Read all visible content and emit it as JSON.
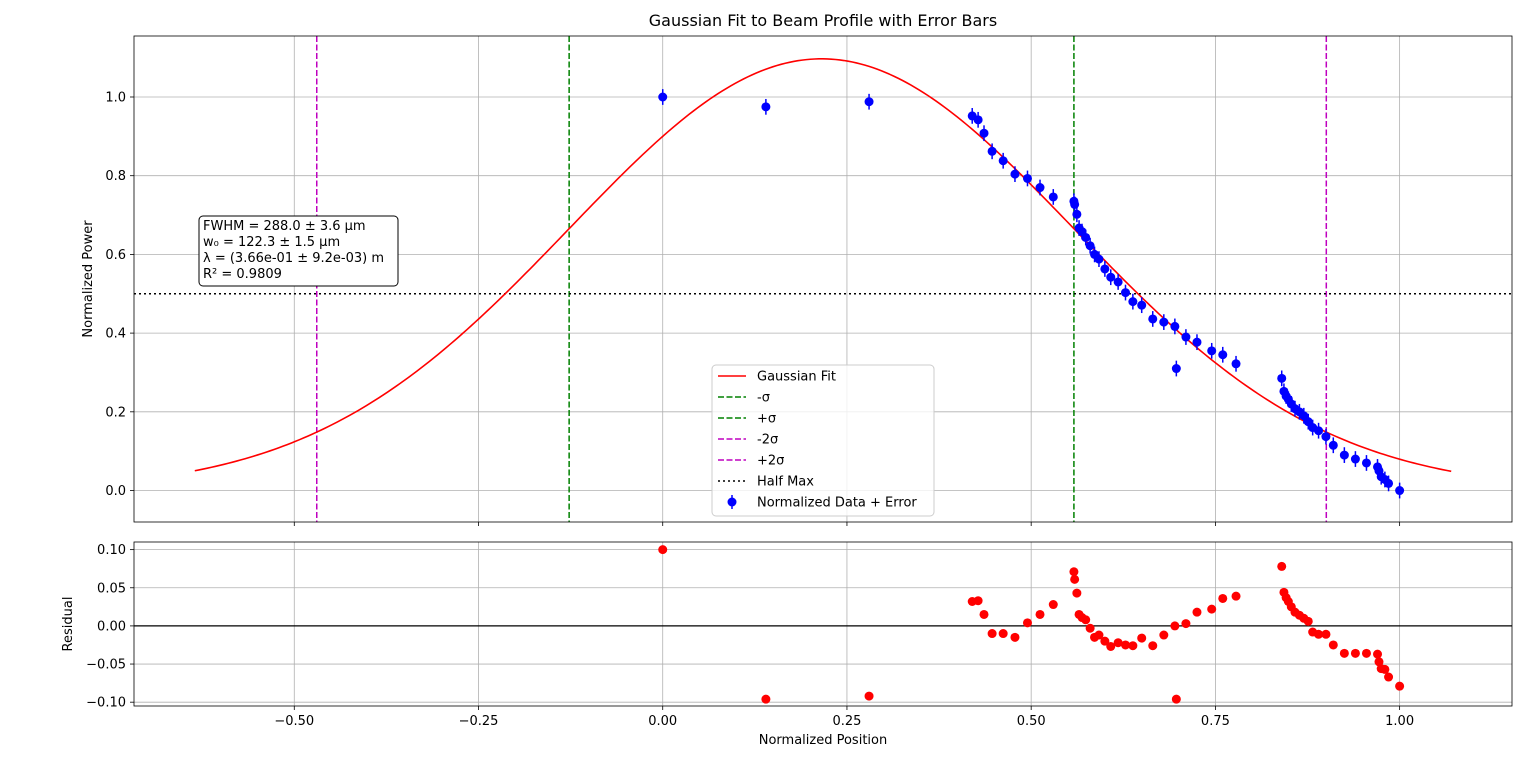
{
  "chart_data": {
    "title": "Gaussian Fit to Beam Profile with Error Bars",
    "type": "scatter",
    "top_panel": {
      "ylabel": "Normalized Power",
      "xlim": [
        -0.7175,
        1.1525
      ],
      "ylim": [
        -0.08,
        1.155
      ],
      "xticks": [
        -0.5,
        -0.25,
        0.0,
        0.25,
        0.5,
        0.75,
        1.0
      ],
      "yticks": [
        0.0,
        0.2,
        0.4,
        0.6,
        0.8,
        1.0
      ],
      "ytick_labels": [
        "0.0",
        "0.2",
        "0.4",
        "0.6",
        "0.8",
        "1.0"
      ],
      "grid": true,
      "legend_position": "lower center",
      "legend": [
        {
          "label": "Gaussian Fit",
          "color": "#ff0000",
          "style": "solid"
        },
        {
          "label": "-σ",
          "color": "#008000",
          "style": "dashed"
        },
        {
          "label": "+σ",
          "color": "#008000",
          "style": "dashed"
        },
        {
          "label": "-2σ",
          "color": "#bf00bf",
          "style": "dashed"
        },
        {
          "label": "+2σ",
          "color": "#bf00bf",
          "style": "dashed"
        },
        {
          "label": "Half Max",
          "color": "#000000",
          "style": "dotted"
        },
        {
          "label": "Normalized Data + Error",
          "color": "#0000ff",
          "style": "errorbar"
        }
      ],
      "annotation": [
        "FWHM = 288.0 ± 3.6 µm",
        "w₀ = 122.3 ± 1.5 µm",
        "λ = (3.66e-01 ± 9.2e-03) m",
        "R² = 0.9809"
      ],
      "fit": {
        "amplitude": 1.097,
        "center": 0.2155,
        "sigma": 0.3425,
        "x_range": [
          -0.635,
          1.07
        ],
        "color": "#ff0000"
      },
      "vlines": [
        {
          "x": -0.127,
          "color": "#008000",
          "style": "dashed"
        },
        {
          "x": 0.558,
          "color": "#008000",
          "style": "dashed"
        },
        {
          "x": -0.4695,
          "color": "#bf00bf",
          "style": "dashed"
        },
        {
          "x": 0.9005,
          "color": "#bf00bf",
          "style": "dashed"
        }
      ],
      "hline": {
        "y": 0.5,
        "color": "#000000",
        "style": "dotted"
      },
      "data": {
        "x": [
          0.0,
          0.14,
          0.28,
          0.42,
          0.428,
          0.436,
          0.447,
          0.462,
          0.478,
          0.495,
          0.512,
          0.53,
          0.558,
          0.559,
          0.562,
          0.565,
          0.569,
          0.574,
          0.58,
          0.586,
          0.592,
          0.6,
          0.608,
          0.618,
          0.628,
          0.638,
          0.65,
          0.665,
          0.68,
          0.695,
          0.71,
          0.725,
          0.745,
          0.76,
          0.778,
          0.697,
          0.84,
          0.843,
          0.846,
          0.849,
          0.853,
          0.858,
          0.864,
          0.87,
          0.876,
          0.882,
          0.89,
          0.9,
          0.91,
          0.925,
          0.94,
          0.955,
          0.97,
          0.972,
          0.975,
          0.98,
          0.985,
          1.0
        ],
        "y": [
          1.0,
          0.975,
          0.988,
          0.952,
          0.942,
          0.908,
          0.862,
          0.838,
          0.804,
          0.793,
          0.77,
          0.746,
          0.735,
          0.727,
          0.702,
          0.667,
          0.658,
          0.643,
          0.622,
          0.6,
          0.588,
          0.563,
          0.542,
          0.53,
          0.503,
          0.48,
          0.471,
          0.436,
          0.428,
          0.417,
          0.39,
          0.377,
          0.355,
          0.345,
          0.322,
          0.31,
          0.285,
          0.252,
          0.24,
          0.232,
          0.22,
          0.208,
          0.2,
          0.19,
          0.175,
          0.16,
          0.152,
          0.137,
          0.115,
          0.09,
          0.08,
          0.07,
          0.06,
          0.05,
          0.035,
          0.028,
          0.018,
          0.0
        ],
        "yerr": 0.02,
        "color": "#0000ff"
      }
    },
    "bottom_panel": {
      "xlabel": "Normalized Position",
      "ylabel": "Residual",
      "xlim": [
        -0.7175,
        1.1525
      ],
      "ylim": [
        -0.105,
        0.11
      ],
      "xticks": [
        -0.5,
        -0.25,
        0.0,
        0.25,
        0.5,
        0.75,
        1.0
      ],
      "xtick_labels": [
        "−0.50",
        "−0.25",
        "0.00",
        "0.25",
        "0.50",
        "0.75",
        "1.00"
      ],
      "yticks": [
        -0.1,
        -0.05,
        0.0,
        0.05,
        0.1
      ],
      "ytick_labels": [
        "−0.10",
        "−0.05",
        "0.00",
        "0.05",
        "0.10"
      ],
      "grid": true,
      "zero_line": true,
      "residuals": {
        "x": [
          0.0,
          0.14,
          0.28,
          0.42,
          0.428,
          0.436,
          0.447,
          0.462,
          0.478,
          0.495,
          0.512,
          0.53,
          0.558,
          0.559,
          0.562,
          0.565,
          0.569,
          0.574,
          0.58,
          0.586,
          0.592,
          0.6,
          0.608,
          0.618,
          0.628,
          0.638,
          0.65,
          0.665,
          0.68,
          0.695,
          0.71,
          0.725,
          0.745,
          0.76,
          0.778,
          0.697,
          0.84,
          0.843,
          0.846,
          0.849,
          0.853,
          0.858,
          0.864,
          0.87,
          0.876,
          0.882,
          0.89,
          0.9,
          0.91,
          0.925,
          0.94,
          0.955,
          0.97,
          0.972,
          0.975,
          0.98,
          0.985,
          1.0
        ],
        "y": [
          0.1,
          -0.096,
          -0.092,
          0.032,
          0.033,
          0.015,
          -0.01,
          -0.01,
          -0.015,
          0.004,
          0.015,
          0.028,
          0.071,
          0.061,
          0.043,
          0.015,
          0.011,
          0.008,
          -0.003,
          -0.015,
          -0.012,
          -0.02,
          -0.027,
          -0.022,
          -0.025,
          -0.026,
          -0.016,
          -0.026,
          -0.012,
          0.0,
          0.003,
          0.018,
          0.022,
          0.036,
          0.039,
          -0.096,
          0.078,
          0.044,
          0.037,
          0.032,
          0.025,
          0.018,
          0.014,
          0.01,
          0.006,
          -0.008,
          -0.011,
          -0.011,
          -0.025,
          -0.036,
          -0.036,
          -0.036,
          -0.037,
          -0.047,
          -0.056,
          -0.057,
          -0.067,
          -0.079
        ],
        "color": "#ff0000"
      }
    }
  }
}
